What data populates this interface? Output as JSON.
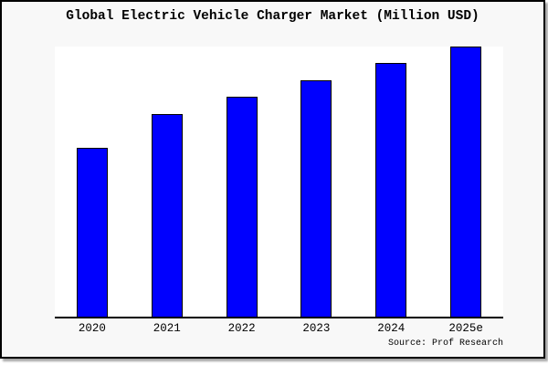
{
  "chart_data": {
    "type": "bar",
    "title": "Global Electric Vehicle Charger Market (Million USD)",
    "categories": [
      "2020",
      "2021",
      "2022",
      "2023",
      "2024",
      "2025e"
    ],
    "values": [
      100,
      120,
      130,
      140,
      150,
      160
    ],
    "value_note": "y-axis unlabeled; values are relative estimates from bar heights",
    "xlabel": "",
    "ylabel": "",
    "ylim": [
      0,
      160
    ],
    "grid": false,
    "legend": null,
    "source": "Source: Prof Research",
    "colors": {
      "bar_fill": "#0000fe",
      "bar_border": "#000000",
      "plot_bg": "#ffffff",
      "card_bg": "#f8f8f8",
      "axis": "#000000"
    }
  }
}
